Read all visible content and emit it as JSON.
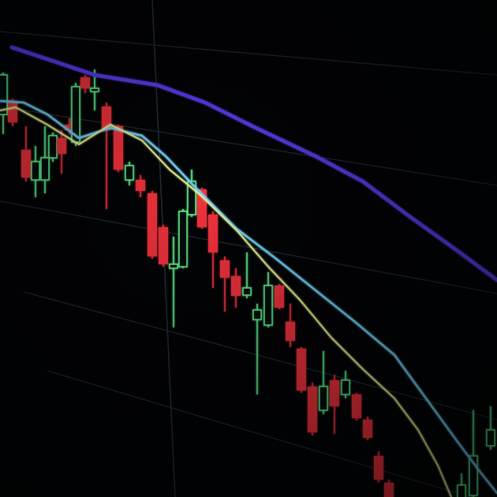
{
  "scene": {
    "subject": "candlestick-chart-screen-photo",
    "colors": {
      "background": "#020305",
      "bullish": "#5ef08a",
      "bearish": "#f0303c",
      "ma_slow": "#5a3cf0",
      "ma_mid": "#6fd0f5",
      "ma_fast": "#e8f090",
      "grid": "#2a3a48"
    },
    "icons": []
  }
}
